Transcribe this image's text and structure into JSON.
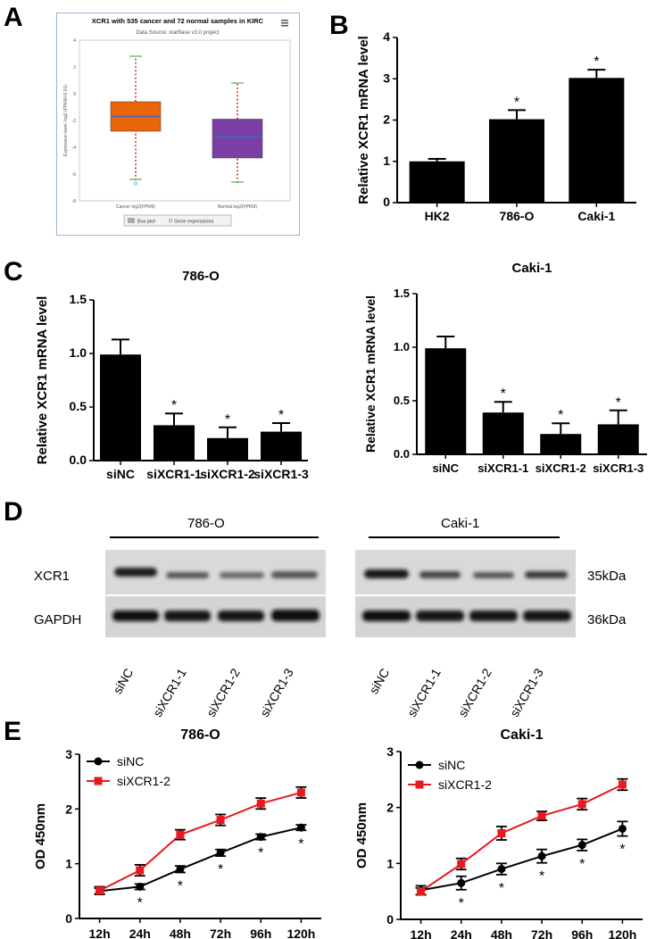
{
  "panels": {
    "a": "A",
    "b": "B",
    "c": "C",
    "d": "D",
    "e": "E"
  },
  "panel_a": {
    "title": "XCR1 with 535 cancer and 72 normal samples in KIRC",
    "subtitle": "Data Source: starBase v3.0 project",
    "ylabel": "Expression level: log2 (FPKM+0.01)",
    "yticks": [
      "4",
      "2",
      "0",
      "-2",
      "-4",
      "-6",
      "-8"
    ],
    "xlabels": [
      "Cancer log2(FPKM)",
      "Normal log2(FPKM)"
    ],
    "legend_box": "Box plot",
    "legend_dot": "Gene expressions",
    "menu_icon": "menu-icon",
    "colors": {
      "cancer": "#e8650a",
      "normal": "#7b3fa6",
      "median": "#3a6bbf",
      "whisker": "#4caf50",
      "dots": "#d0312d"
    }
  },
  "panel_d": {
    "group1": "786-O",
    "group2": "Caki-1",
    "row1": "XCR1",
    "row2": "GAPDH",
    "size1": "35kDa",
    "size2": "36kDa",
    "lanes1": [
      "siNC",
      "siXCR1-1",
      "siXCR1-2",
      "siXCR1-3"
    ],
    "lanes2": [
      "siNC",
      "siXCR1-1",
      "siXCR1-2",
      "siXCR1-3"
    ]
  },
  "chart_data": [
    {
      "id": "A",
      "type": "box",
      "title": "XCR1 with 535 cancer and 72 normal samples in KIRC",
      "categories": [
        "Cancer log2(FPKM)",
        "Normal log2(FPKM)"
      ],
      "boxes": [
        {
          "min": -6.4,
          "q1": -2.8,
          "median": -1.7,
          "q3": -0.6,
          "max": 2.8
        },
        {
          "min": -6.6,
          "q1": -4.8,
          "median": -3.2,
          "q3": -1.9,
          "max": 0.8
        }
      ],
      "ylim": [
        -8,
        4
      ]
    },
    {
      "id": "B",
      "type": "bar",
      "categories": [
        "HK2",
        "786-O",
        "Caki-1"
      ],
      "values": [
        1.0,
        2.02,
        3.02
      ],
      "errors": [
        0.06,
        0.22,
        0.2
      ],
      "significance": [
        "",
        "*",
        "*"
      ],
      "ylabel": "Relative XCR1 mRNA level",
      "ylim": [
        0,
        4
      ],
      "yticks": [
        "0",
        "1",
        "2",
        "3",
        "4"
      ]
    },
    {
      "id": "C1",
      "type": "bar",
      "title": "786-O",
      "categories": [
        "siNC",
        "siXCR1-1",
        "siXCR1-2",
        "siXCR1-3"
      ],
      "values": [
        0.99,
        0.33,
        0.21,
        0.27
      ],
      "errors": [
        0.14,
        0.11,
        0.1,
        0.08
      ],
      "significance": [
        "",
        "*",
        "*",
        "*"
      ],
      "ylabel": "Relative XCR1 mRNA level",
      "ylim": [
        0,
        1.5
      ],
      "yticks": [
        "0.0",
        "0.5",
        "1.0",
        "1.5"
      ]
    },
    {
      "id": "C2",
      "type": "bar",
      "title": "Caki-1",
      "categories": [
        "siNC",
        "siXCR1-1",
        "siXCR1-2",
        "siXCR1-3"
      ],
      "values": [
        0.99,
        0.39,
        0.19,
        0.28
      ],
      "errors": [
        0.11,
        0.1,
        0.1,
        0.13
      ],
      "significance": [
        "",
        "*",
        "*",
        "*"
      ],
      "ylabel": "Relative XCR1 mRNA level",
      "ylim": [
        0,
        1.5
      ],
      "yticks": [
        "0.0",
        "0.5",
        "1.0",
        "1.5"
      ]
    },
    {
      "id": "E1",
      "type": "line",
      "title": "786-O",
      "x": [
        "12h",
        "24h",
        "48h",
        "72h",
        "96h",
        "120h"
      ],
      "series": [
        {
          "name": "siNC",
          "values": [
            0.5,
            0.58,
            0.9,
            1.2,
            1.49,
            1.66
          ],
          "errors": [
            0.05,
            0.05,
            0.06,
            0.06,
            0.05,
            0.05
          ],
          "color": "#000000",
          "marker": "circle"
        },
        {
          "name": "siXCR1-2",
          "values": [
            0.51,
            0.88,
            1.53,
            1.8,
            2.1,
            2.3
          ],
          "errors": [
            0.07,
            0.1,
            0.09,
            0.1,
            0.1,
            0.1
          ],
          "color": "#e8191f",
          "marker": "square"
        }
      ],
      "significance": [
        "",
        "*",
        "*",
        "*",
        "*",
        "*"
      ],
      "ylabel": "OD 450nm",
      "ylim": [
        0,
        3
      ],
      "yticks": [
        "0",
        "1",
        "2",
        "3"
      ]
    },
    {
      "id": "E2",
      "type": "line",
      "title": "Caki-1",
      "x": [
        "12h",
        "24h",
        "48h",
        "72h",
        "96h",
        "120h"
      ],
      "series": [
        {
          "name": "siNC",
          "values": [
            0.52,
            0.65,
            0.9,
            1.13,
            1.33,
            1.62
          ],
          "errors": [
            0.08,
            0.12,
            0.1,
            0.12,
            0.1,
            0.13
          ],
          "color": "#000000",
          "marker": "circle"
        },
        {
          "name": "siXCR1-2",
          "values": [
            0.5,
            0.99,
            1.54,
            1.85,
            2.06,
            2.41
          ],
          "errors": [
            0.06,
            0.1,
            0.12,
            0.08,
            0.1,
            0.1
          ],
          "color": "#e8191f",
          "marker": "square"
        }
      ],
      "significance": [
        "",
        "*",
        "*",
        "*",
        "*",
        "*"
      ],
      "ylabel": "OD 450nm",
      "ylim": [
        0,
        3
      ],
      "yticks": [
        "0",
        "1",
        "2",
        "3"
      ]
    }
  ]
}
